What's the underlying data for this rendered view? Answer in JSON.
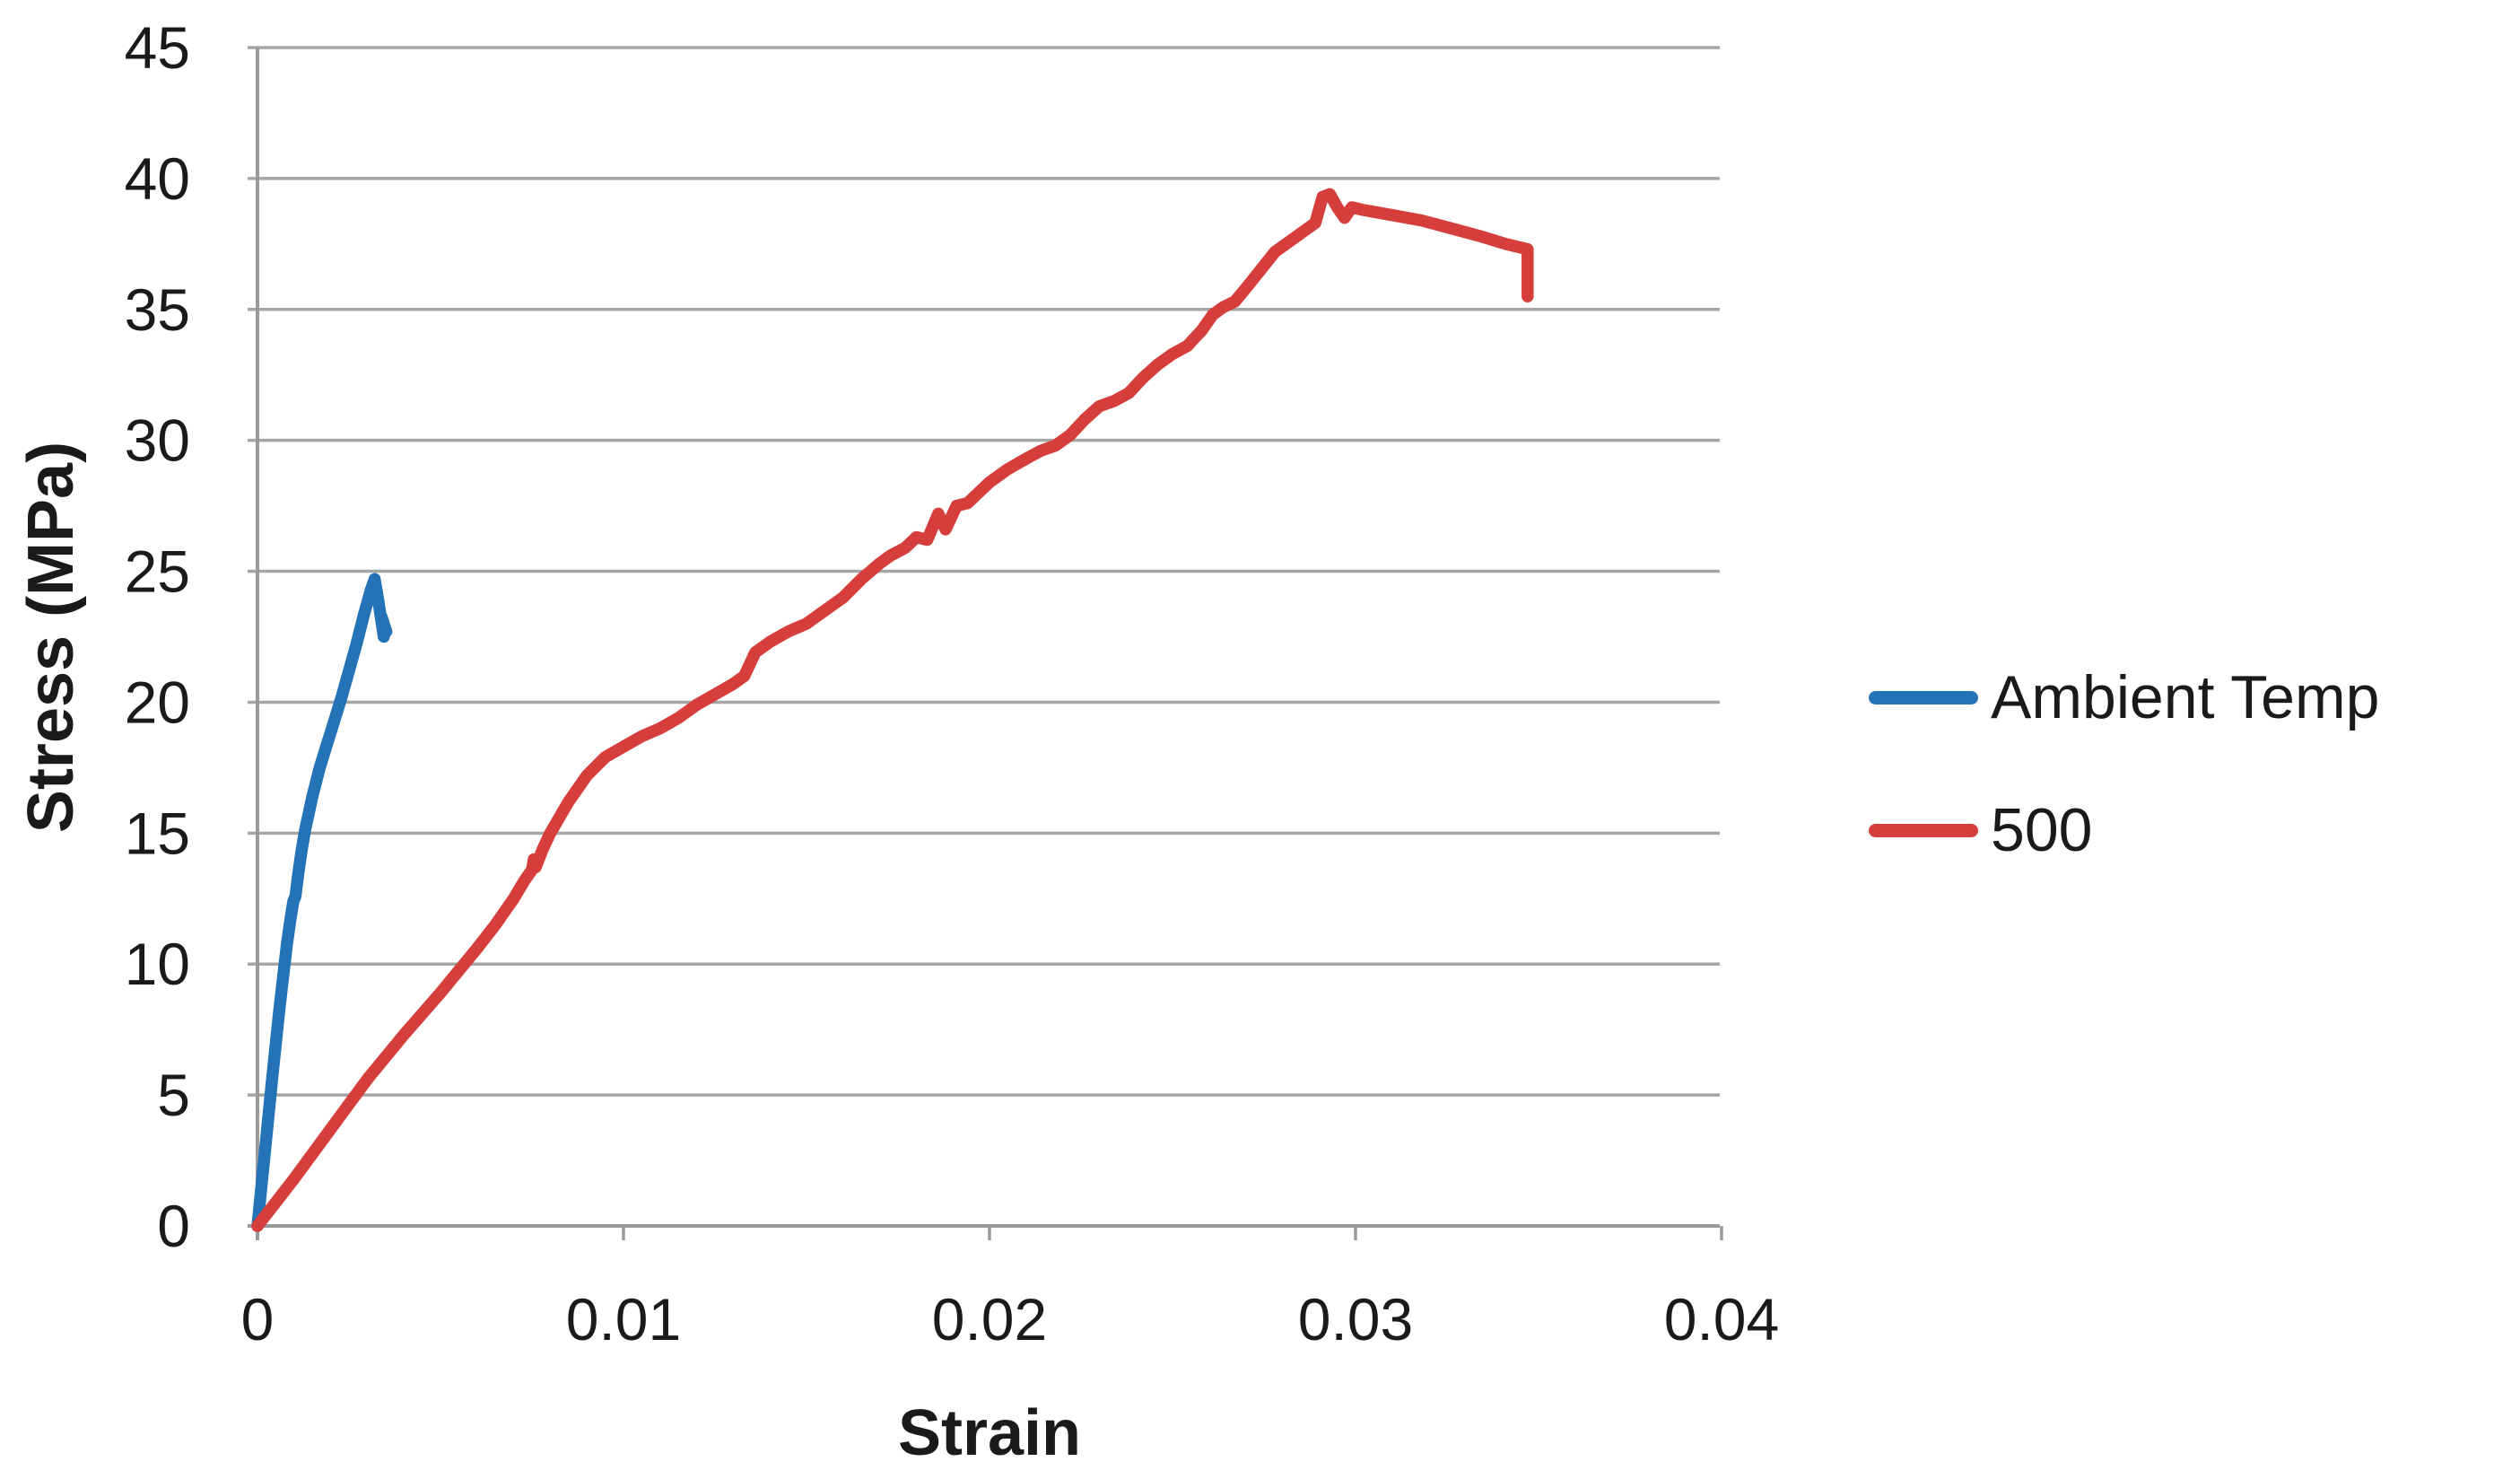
{
  "chart_data": {
    "type": "line",
    "title": "",
    "xlabel": "Strain",
    "ylabel": "Stress (MPa)",
    "xlim": [
      0,
      0.04
    ],
    "ylim": [
      0,
      45
    ],
    "x_ticks": [
      0,
      0.01,
      0.02,
      0.03,
      0.04
    ],
    "x_tick_labels": [
      "0",
      "0.01",
      "0.02",
      "0.03",
      "0.04"
    ],
    "y_ticks": [
      0,
      5,
      10,
      15,
      20,
      25,
      30,
      35,
      40,
      45
    ],
    "y_tick_labels": [
      "0",
      "5",
      "10",
      "15",
      "20",
      "25",
      "30",
      "35",
      "40",
      "45"
    ],
    "grid": "horizontal-on",
    "legend_position": "right",
    "gridline_color": "#a6a6a6",
    "axis_color": "#9a9a9a",
    "text_color": "#1a1a1a",
    "background_color": "#ffffff",
    "series": [
      {
        "name": "Ambient Temp",
        "color": "#2373b6",
        "points": [
          [
            0,
            0
          ],
          [
            0.0002,
            2.8
          ],
          [
            0.0004,
            5.6
          ],
          [
            0.0006,
            8.3
          ],
          [
            0.0008,
            10.7
          ],
          [
            0.0009,
            11.7
          ],
          [
            0.00098,
            12.4
          ],
          [
            0.00104,
            12.6
          ],
          [
            0.0011,
            13.3
          ],
          [
            0.0012,
            14.3
          ],
          [
            0.0013,
            15.1
          ],
          [
            0.0015,
            16.4
          ],
          [
            0.0017,
            17.5
          ],
          [
            0.0019,
            18.4
          ],
          [
            0.0021,
            19.3
          ],
          [
            0.0023,
            20.2
          ],
          [
            0.0025,
            21.2
          ],
          [
            0.0027,
            22.2
          ],
          [
            0.0029,
            23.3
          ],
          [
            0.0031,
            24.3
          ],
          [
            0.0032,
            24.7
          ],
          [
            0.0033,
            23.9
          ],
          [
            0.00345,
            22.5
          ],
          [
            0.00338,
            23.3
          ],
          [
            0.00352,
            22.7
          ]
        ]
      },
      {
        "name": "500",
        "color": "#d63e3c",
        "points": [
          [
            0,
            0
          ],
          [
            0.001,
            1.8
          ],
          [
            0.002,
            3.7
          ],
          [
            0.003,
            5.6
          ],
          [
            0.004,
            7.3
          ],
          [
            0.005,
            8.9
          ],
          [
            0.006,
            10.6
          ],
          [
            0.0065,
            11.5
          ],
          [
            0.007,
            12.5
          ],
          [
            0.0073,
            13.2
          ],
          [
            0.0075,
            13.6
          ],
          [
            0.00755,
            14.0
          ],
          [
            0.0076,
            13.7
          ],
          [
            0.0078,
            14.4
          ],
          [
            0.008,
            15.0
          ],
          [
            0.0085,
            16.2
          ],
          [
            0.009,
            17.2
          ],
          [
            0.0095,
            17.9
          ],
          [
            0.01,
            18.3
          ],
          [
            0.0105,
            18.7
          ],
          [
            0.011,
            19.0
          ],
          [
            0.0115,
            19.4
          ],
          [
            0.012,
            19.9
          ],
          [
            0.0125,
            20.3
          ],
          [
            0.013,
            20.7
          ],
          [
            0.0133,
            21.0
          ],
          [
            0.0136,
            21.9
          ],
          [
            0.014,
            22.3
          ],
          [
            0.0145,
            22.7
          ],
          [
            0.015,
            23.0
          ],
          [
            0.0155,
            23.5
          ],
          [
            0.016,
            24.0
          ],
          [
            0.0165,
            24.7
          ],
          [
            0.017,
            25.3
          ],
          [
            0.0173,
            25.6
          ],
          [
            0.0177,
            25.9
          ],
          [
            0.018,
            26.3
          ],
          [
            0.0183,
            26.2
          ],
          [
            0.0186,
            27.2
          ],
          [
            0.0188,
            26.6
          ],
          [
            0.0191,
            27.5
          ],
          [
            0.0194,
            27.6
          ],
          [
            0.0197,
            28.0
          ],
          [
            0.02,
            28.4
          ],
          [
            0.0205,
            28.9
          ],
          [
            0.021,
            29.3
          ],
          [
            0.0214,
            29.6
          ],
          [
            0.0218,
            29.8
          ],
          [
            0.0222,
            30.2
          ],
          [
            0.0226,
            30.8
          ],
          [
            0.023,
            31.3
          ],
          [
            0.0234,
            31.5
          ],
          [
            0.0238,
            31.8
          ],
          [
            0.0242,
            32.4
          ],
          [
            0.0246,
            32.9
          ],
          [
            0.025,
            33.3
          ],
          [
            0.0254,
            33.6
          ],
          [
            0.0258,
            34.2
          ],
          [
            0.0261,
            34.8
          ],
          [
            0.0264,
            35.1
          ],
          [
            0.0267,
            35.3
          ],
          [
            0.027,
            35.8
          ],
          [
            0.0274,
            36.5
          ],
          [
            0.0278,
            37.2
          ],
          [
            0.0282,
            37.6
          ],
          [
            0.0286,
            38.0
          ],
          [
            0.0289,
            38.3
          ],
          [
            0.0291,
            39.3
          ],
          [
            0.0293,
            39.4
          ],
          [
            0.0295,
            38.9
          ],
          [
            0.0297,
            38.5
          ],
          [
            0.0299,
            38.9
          ],
          [
            0.0302,
            38.8
          ],
          [
            0.031,
            38.6
          ],
          [
            0.0318,
            38.4
          ],
          [
            0.0326,
            38.1
          ],
          [
            0.0334,
            37.8
          ],
          [
            0.0341,
            37.5
          ],
          [
            0.0347,
            37.3
          ],
          [
            0.0347,
            35.5
          ]
        ]
      }
    ]
  }
}
